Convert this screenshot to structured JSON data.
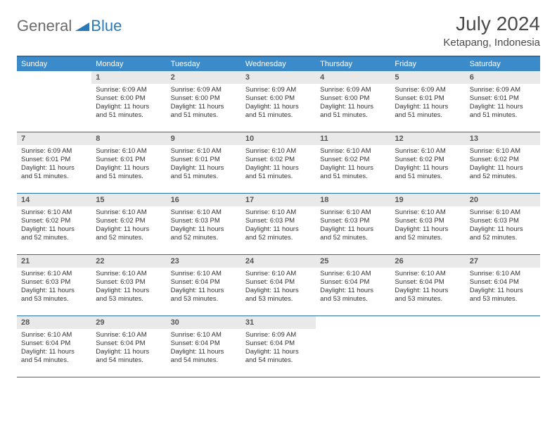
{
  "brand": {
    "general": "General",
    "blue": "Blue"
  },
  "title": "July 2024",
  "location": "Ketapang, Indonesia",
  "colors": {
    "header_bg": "#3b8aca",
    "border": "#2a6ea6",
    "daynum_bg": "#e9e9e9",
    "text": "#333333"
  },
  "days_of_week": [
    "Sunday",
    "Monday",
    "Tuesday",
    "Wednesday",
    "Thursday",
    "Friday",
    "Saturday"
  ],
  "weeks": [
    [
      {
        "n": "",
        "sr": "",
        "ss": "",
        "dl": ""
      },
      {
        "n": "1",
        "sr": "Sunrise: 6:09 AM",
        "ss": "Sunset: 6:00 PM",
        "dl": "Daylight: 11 hours and 51 minutes."
      },
      {
        "n": "2",
        "sr": "Sunrise: 6:09 AM",
        "ss": "Sunset: 6:00 PM",
        "dl": "Daylight: 11 hours and 51 minutes."
      },
      {
        "n": "3",
        "sr": "Sunrise: 6:09 AM",
        "ss": "Sunset: 6:00 PM",
        "dl": "Daylight: 11 hours and 51 minutes."
      },
      {
        "n": "4",
        "sr": "Sunrise: 6:09 AM",
        "ss": "Sunset: 6:00 PM",
        "dl": "Daylight: 11 hours and 51 minutes."
      },
      {
        "n": "5",
        "sr": "Sunrise: 6:09 AM",
        "ss": "Sunset: 6:01 PM",
        "dl": "Daylight: 11 hours and 51 minutes."
      },
      {
        "n": "6",
        "sr": "Sunrise: 6:09 AM",
        "ss": "Sunset: 6:01 PM",
        "dl": "Daylight: 11 hours and 51 minutes."
      }
    ],
    [
      {
        "n": "7",
        "sr": "Sunrise: 6:09 AM",
        "ss": "Sunset: 6:01 PM",
        "dl": "Daylight: 11 hours and 51 minutes."
      },
      {
        "n": "8",
        "sr": "Sunrise: 6:10 AM",
        "ss": "Sunset: 6:01 PM",
        "dl": "Daylight: 11 hours and 51 minutes."
      },
      {
        "n": "9",
        "sr": "Sunrise: 6:10 AM",
        "ss": "Sunset: 6:01 PM",
        "dl": "Daylight: 11 hours and 51 minutes."
      },
      {
        "n": "10",
        "sr": "Sunrise: 6:10 AM",
        "ss": "Sunset: 6:02 PM",
        "dl": "Daylight: 11 hours and 51 minutes."
      },
      {
        "n": "11",
        "sr": "Sunrise: 6:10 AM",
        "ss": "Sunset: 6:02 PM",
        "dl": "Daylight: 11 hours and 51 minutes."
      },
      {
        "n": "12",
        "sr": "Sunrise: 6:10 AM",
        "ss": "Sunset: 6:02 PM",
        "dl": "Daylight: 11 hours and 51 minutes."
      },
      {
        "n": "13",
        "sr": "Sunrise: 6:10 AM",
        "ss": "Sunset: 6:02 PM",
        "dl": "Daylight: 11 hours and 52 minutes."
      }
    ],
    [
      {
        "n": "14",
        "sr": "Sunrise: 6:10 AM",
        "ss": "Sunset: 6:02 PM",
        "dl": "Daylight: 11 hours and 52 minutes."
      },
      {
        "n": "15",
        "sr": "Sunrise: 6:10 AM",
        "ss": "Sunset: 6:02 PM",
        "dl": "Daylight: 11 hours and 52 minutes."
      },
      {
        "n": "16",
        "sr": "Sunrise: 6:10 AM",
        "ss": "Sunset: 6:03 PM",
        "dl": "Daylight: 11 hours and 52 minutes."
      },
      {
        "n": "17",
        "sr": "Sunrise: 6:10 AM",
        "ss": "Sunset: 6:03 PM",
        "dl": "Daylight: 11 hours and 52 minutes."
      },
      {
        "n": "18",
        "sr": "Sunrise: 6:10 AM",
        "ss": "Sunset: 6:03 PM",
        "dl": "Daylight: 11 hours and 52 minutes."
      },
      {
        "n": "19",
        "sr": "Sunrise: 6:10 AM",
        "ss": "Sunset: 6:03 PM",
        "dl": "Daylight: 11 hours and 52 minutes."
      },
      {
        "n": "20",
        "sr": "Sunrise: 6:10 AM",
        "ss": "Sunset: 6:03 PM",
        "dl": "Daylight: 11 hours and 52 minutes."
      }
    ],
    [
      {
        "n": "21",
        "sr": "Sunrise: 6:10 AM",
        "ss": "Sunset: 6:03 PM",
        "dl": "Daylight: 11 hours and 53 minutes."
      },
      {
        "n": "22",
        "sr": "Sunrise: 6:10 AM",
        "ss": "Sunset: 6:03 PM",
        "dl": "Daylight: 11 hours and 53 minutes."
      },
      {
        "n": "23",
        "sr": "Sunrise: 6:10 AM",
        "ss": "Sunset: 6:04 PM",
        "dl": "Daylight: 11 hours and 53 minutes."
      },
      {
        "n": "24",
        "sr": "Sunrise: 6:10 AM",
        "ss": "Sunset: 6:04 PM",
        "dl": "Daylight: 11 hours and 53 minutes."
      },
      {
        "n": "25",
        "sr": "Sunrise: 6:10 AM",
        "ss": "Sunset: 6:04 PM",
        "dl": "Daylight: 11 hours and 53 minutes."
      },
      {
        "n": "26",
        "sr": "Sunrise: 6:10 AM",
        "ss": "Sunset: 6:04 PM",
        "dl": "Daylight: 11 hours and 53 minutes."
      },
      {
        "n": "27",
        "sr": "Sunrise: 6:10 AM",
        "ss": "Sunset: 6:04 PM",
        "dl": "Daylight: 11 hours and 53 minutes."
      }
    ],
    [
      {
        "n": "28",
        "sr": "Sunrise: 6:10 AM",
        "ss": "Sunset: 6:04 PM",
        "dl": "Daylight: 11 hours and 54 minutes."
      },
      {
        "n": "29",
        "sr": "Sunrise: 6:10 AM",
        "ss": "Sunset: 6:04 PM",
        "dl": "Daylight: 11 hours and 54 minutes."
      },
      {
        "n": "30",
        "sr": "Sunrise: 6:10 AM",
        "ss": "Sunset: 6:04 PM",
        "dl": "Daylight: 11 hours and 54 minutes."
      },
      {
        "n": "31",
        "sr": "Sunrise: 6:09 AM",
        "ss": "Sunset: 6:04 PM",
        "dl": "Daylight: 11 hours and 54 minutes."
      },
      {
        "n": "",
        "sr": "",
        "ss": "",
        "dl": ""
      },
      {
        "n": "",
        "sr": "",
        "ss": "",
        "dl": ""
      },
      {
        "n": "",
        "sr": "",
        "ss": "",
        "dl": ""
      }
    ]
  ]
}
